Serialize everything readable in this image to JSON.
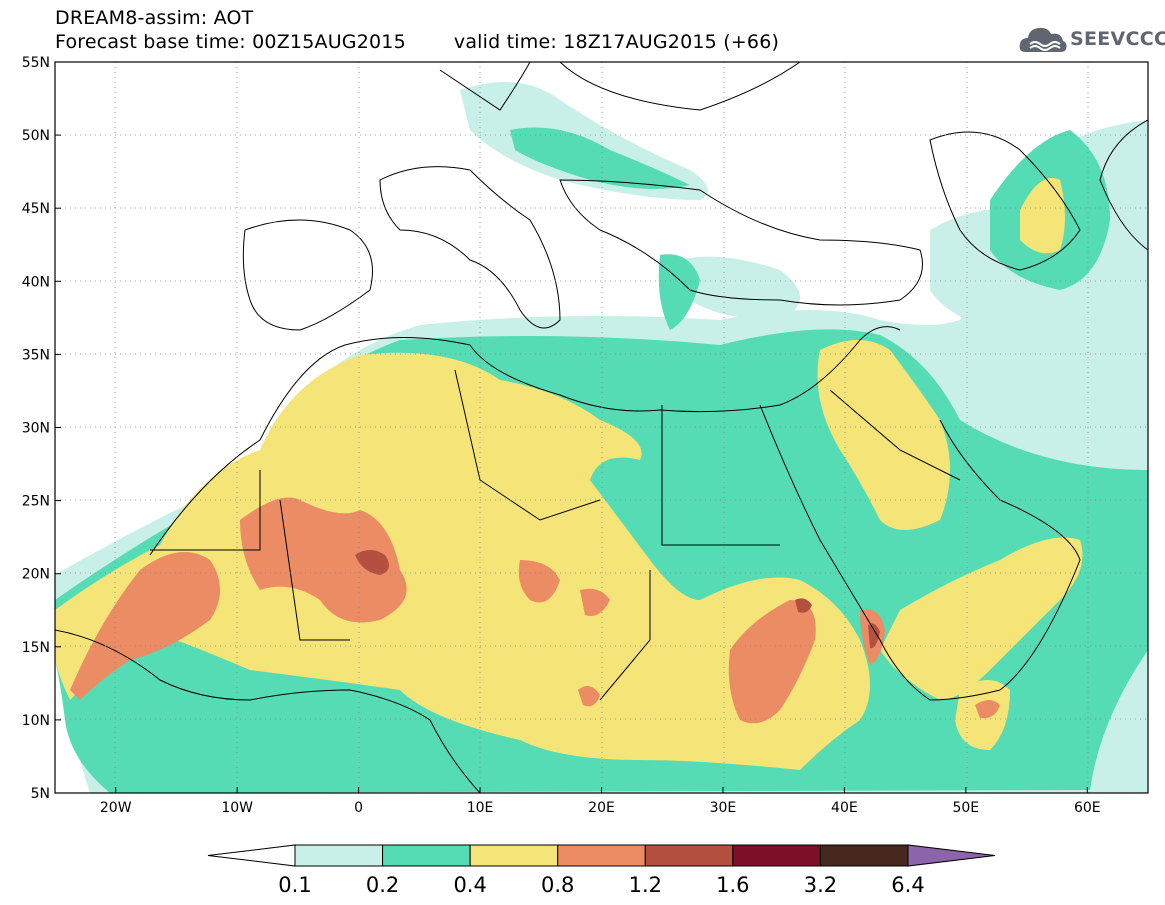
{
  "title": {
    "line1": "DREAM8-assim: AOT",
    "base_time_label": "Forecast base time: 00Z15AUG2015",
    "valid_time_label": "valid time: 18Z17AUG2015 (+66)"
  },
  "logo": {
    "text": "SEEVCCC",
    "icon": "cloud-icon"
  },
  "map": {
    "lon_range": [
      -25,
      65
    ],
    "lat_range": [
      5,
      55
    ],
    "lat_ticks": [
      {
        "value": 55,
        "label": "55N"
      },
      {
        "value": 50,
        "label": "50N"
      },
      {
        "value": 45,
        "label": "45N"
      },
      {
        "value": 40,
        "label": "40N"
      },
      {
        "value": 35,
        "label": "35N"
      },
      {
        "value": 30,
        "label": "30N"
      },
      {
        "value": 25,
        "label": "25N"
      },
      {
        "value": 20,
        "label": "20N"
      },
      {
        "value": 15,
        "label": "15N"
      },
      {
        "value": 10,
        "label": "10N"
      },
      {
        "value": 5,
        "label": "5N"
      }
    ],
    "lon_ticks": [
      {
        "value": -20,
        "label": "20W"
      },
      {
        "value": -10,
        "label": "10W"
      },
      {
        "value": 0,
        "label": "0"
      },
      {
        "value": 10,
        "label": "10E"
      },
      {
        "value": 20,
        "label": "20E"
      },
      {
        "value": 30,
        "label": "30E"
      },
      {
        "value": 40,
        "label": "40E"
      },
      {
        "value": 50,
        "label": "50E"
      },
      {
        "value": 60,
        "label": "60E"
      }
    ]
  },
  "colorbar": {
    "levels": [
      "0.1",
      "0.2",
      "0.4",
      "0.8",
      "1.2",
      "1.6",
      "3.2",
      "6.4"
    ],
    "colors": [
      "#ffffff",
      "#c8f0e8",
      "#55dcb4",
      "#f5e478",
      "#eb8c64",
      "#b45040",
      "#7d0f28",
      "#46281e",
      "#8c64aa"
    ]
  },
  "palette": {
    "land_bg": "#ffffff",
    "border": "#000000"
  }
}
